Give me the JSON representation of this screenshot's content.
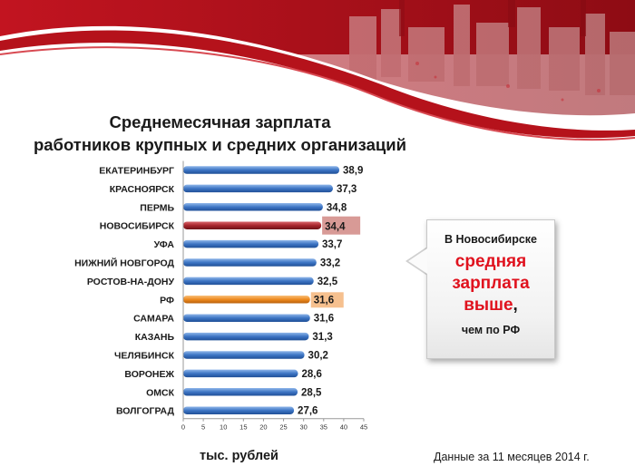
{
  "title": {
    "line1": "Среднемесячная зарплата",
    "line2": "работников крупных и средних организаций"
  },
  "units_label": "тыс. рублей",
  "note": "Данные за 11 месяцев 2014 г.",
  "callout": {
    "line1": "В Новосибирске",
    "line2": "средняя",
    "line3": "зарплата",
    "line4": "выше",
    "comma": ",",
    "line5": "чем по РФ"
  },
  "colors": {
    "default_bar": "#3d75c4",
    "highlight_city_bar": "#a8262d",
    "highlight_city_label_bg": "#d89a96",
    "rf_bar": "#ee8a1e",
    "rf_label_bg": "#f6c08e",
    "banner_red": "#b5121b"
  },
  "chart_data": {
    "type": "bar",
    "orientation": "horizontal",
    "categories": [
      "ЕКАТЕРИНБУРГ",
      "КРАСНОЯРСК",
      "ПЕРМЬ",
      "НОВОСИБИРСК",
      "УФА",
      "НИЖНИЙ НОВГОРОД",
      "РОСТОВ-НА-ДОНУ",
      "РФ",
      "САМАРА",
      "КАЗАНЬ",
      "ЧЕЛЯБИНСК",
      "ВОРОНЕЖ",
      "ОМСК",
      "ВОЛГОГРАД"
    ],
    "values": [
      38.9,
      37.3,
      34.8,
      34.4,
      33.7,
      33.2,
      32.5,
      31.6,
      31.6,
      31.3,
      30.2,
      28.6,
      28.5,
      27.6
    ],
    "value_labels": [
      "38,9",
      "37,3",
      "34,8",
      "34,4",
      "33,7",
      "33,2",
      "32,5",
      "31,6",
      "31,6",
      "31,3",
      "30,2",
      "28,6",
      "28,5",
      "27,6"
    ],
    "highlight": {
      "НОВОСИБИРСК": "city",
      "РФ": "rf"
    },
    "xlim": [
      0,
      45
    ],
    "ticks": [
      0,
      5,
      10,
      15,
      20,
      25,
      30,
      35,
      40,
      45
    ],
    "grid": false
  }
}
